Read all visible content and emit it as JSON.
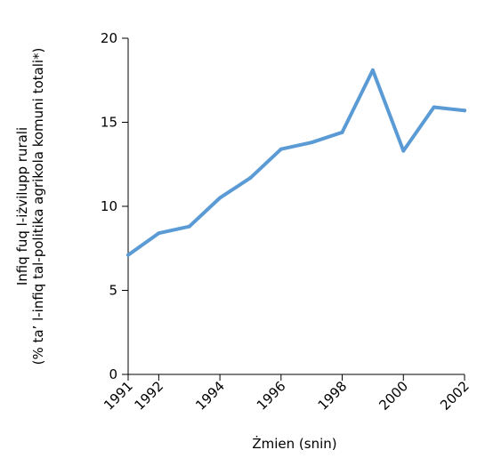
{
  "chart_data": {
    "type": "line",
    "title": "",
    "xlabel": "Żmien (snin)",
    "ylabel_lines": [
      "Infiq fuq l-iżvilupp rurali",
      "(% ta’ l-infiq tal-politika agrikola komuni totali*)"
    ],
    "xlim": [
      1991,
      2002
    ],
    "ylim": [
      0,
      20
    ],
    "xticks": [
      1991,
      1992,
      1994,
      1996,
      1998,
      2000,
      2002
    ],
    "yticks": [
      0,
      5,
      10,
      15,
      20
    ],
    "grid": false,
    "legend": "none",
    "series": [
      {
        "color": "#5b9bd5",
        "x": [
          1991,
          1992,
          1993,
          1994,
          1995,
          1996,
          1997,
          1998,
          1999,
          2000,
          2001,
          2002
        ],
        "y": [
          7.1,
          8.4,
          8.8,
          10.5,
          11.7,
          13.4,
          13.8,
          14.4,
          18.1,
          13.3,
          15.9,
          15.7
        ]
      }
    ]
  }
}
